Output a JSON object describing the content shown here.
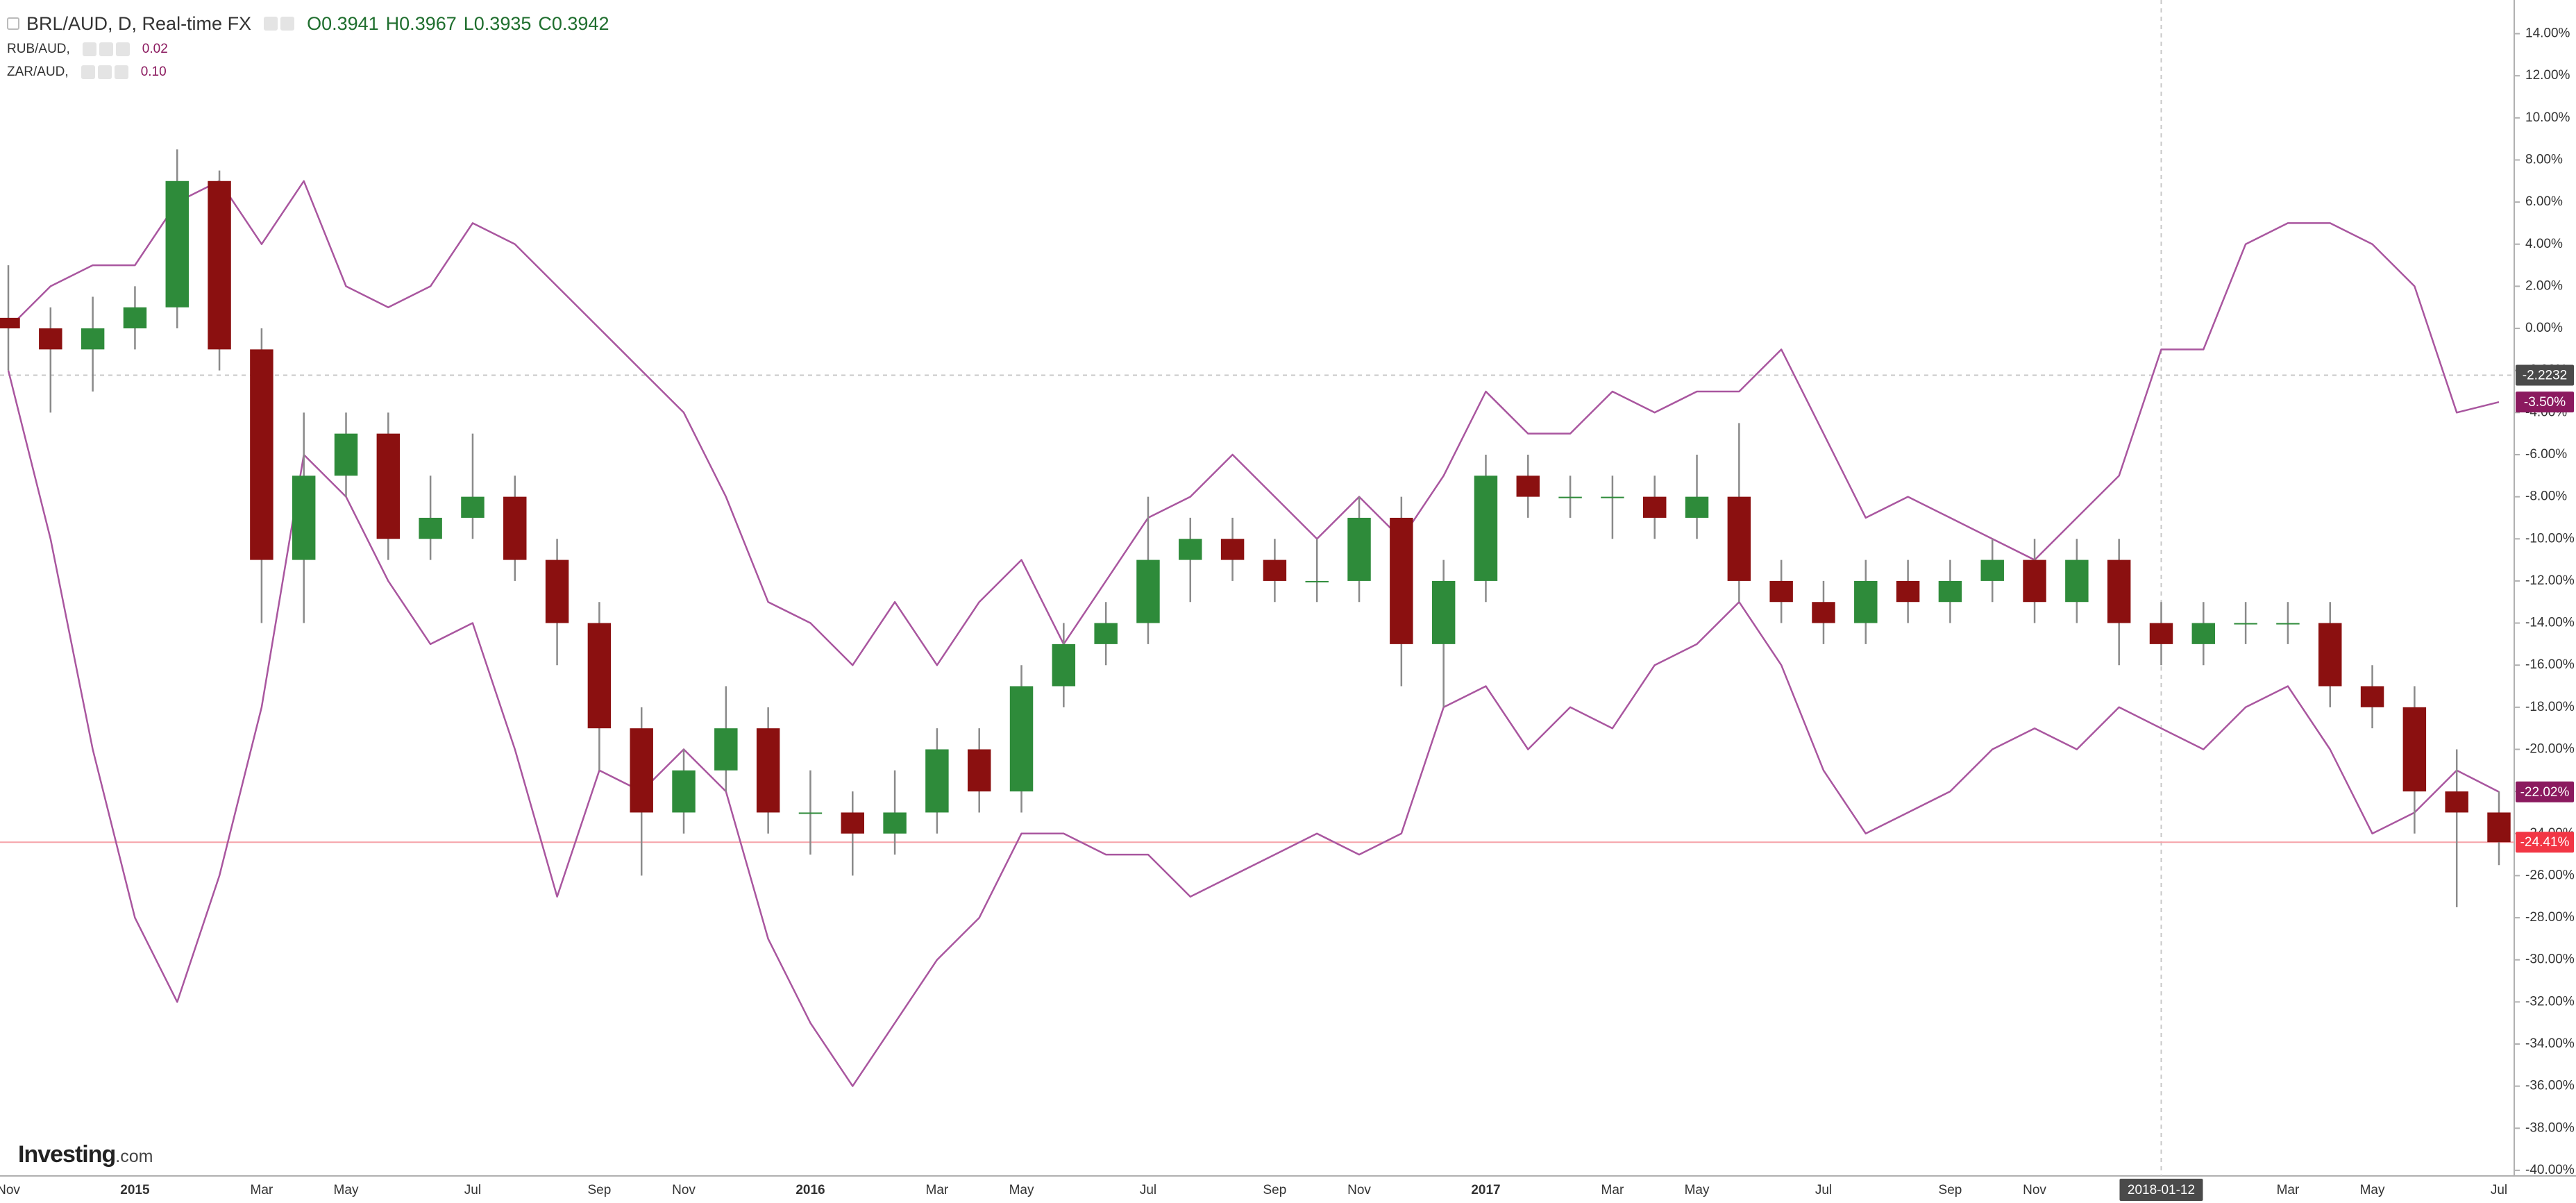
{
  "chart_data": {
    "type": "candlestick",
    "title": "BRL/AUD, D, Real-time FX",
    "ohlc": [
      "O0.3941",
      "H0.3967",
      "L0.3935",
      "C0.3942"
    ],
    "watermark": [
      "Investing",
      ".com"
    ],
    "categories": [
      "Nov",
      null,
      null,
      "2015",
      null,
      null,
      "Mar",
      null,
      "May",
      null,
      null,
      "Jul",
      null,
      null,
      "Sep",
      null,
      "Nov",
      null,
      null,
      "2016",
      null,
      null,
      "Mar",
      null,
      "May",
      null,
      null,
      "Jul",
      null,
      null,
      "Sep",
      null,
      "Nov",
      null,
      null,
      "2017",
      null,
      null,
      "Mar",
      null,
      "May",
      null,
      null,
      "Jul",
      null,
      null,
      "Sep",
      null,
      "Nov",
      null,
      null,
      "2018-01-12",
      null,
      null,
      "Mar",
      null,
      "May",
      null,
      null,
      "Jul"
    ],
    "candles": {
      "up_color": "#2e8b3a",
      "down_color": "#8b1010",
      "wick_color": "#8a8a8a",
      "open": [
        0.5,
        0,
        -1,
        0,
        1,
        7,
        -1,
        -11,
        -7,
        -5,
        -10,
        -9,
        -8,
        -11,
        -14,
        -19,
        -23,
        -21,
        -19,
        -23,
        -23,
        -24,
        -23,
        -20,
        -22,
        -17,
        -15,
        -14,
        -11,
        -10,
        -11,
        -12,
        -12,
        -9,
        -15,
        -12,
        -7,
        -8,
        -8,
        -8,
        -9,
        -8,
        -12,
        -13,
        -14,
        -12,
        -13,
        -12,
        -11,
        -13,
        -11,
        -14,
        -15,
        -14,
        -14,
        -14,
        -17,
        -18,
        -22,
        -23
      ],
      "high": [
        3,
        1,
        1.5,
        2,
        8.5,
        7.5,
        0,
        -4,
        -4,
        -4,
        -7,
        -5,
        -7,
        -10,
        -13,
        -18,
        -20,
        -17,
        -18,
        -21,
        -22,
        -21,
        -19,
        -19,
        -16,
        -14,
        -13,
        -8,
        -9,
        -9,
        -10,
        -10,
        -8,
        -8,
        -11,
        -6,
        -6,
        -7,
        -7,
        -7,
        -6,
        -4.5,
        -11,
        -12,
        -11,
        -11,
        -11,
        -10,
        -10,
        -10,
        -10,
        -13,
        -13,
        -13,
        -13,
        -13,
        -16,
        -17,
        -20,
        -22
      ],
      "low": [
        -2,
        -4,
        -3,
        -1,
        0,
        -2,
        -14,
        -14,
        -8,
        -11,
        -11,
        -10,
        -12,
        -16,
        -21,
        -26,
        -24,
        -22,
        -24,
        -25,
        -26,
        -25,
        -24,
        -23,
        -23,
        -18,
        -16,
        -15,
        -13,
        -12,
        -13,
        -13,
        -13,
        -17,
        -18,
        -13,
        -9,
        -9,
        -10,
        -10,
        -10,
        -13,
        -14,
        -15,
        -15,
        -14,
        -14,
        -13,
        -14,
        -14,
        -16,
        -16,
        -16,
        -15,
        -15,
        -18,
        -19,
        -24,
        -27.5,
        -25.5
      ],
      "close": [
        0,
        -1,
        0,
        1,
        7,
        -1,
        -11,
        -7,
        -5,
        -10,
        -9,
        -8,
        -11,
        -14,
        -19,
        -23,
        -21,
        -19,
        -23,
        -23,
        -24,
        -23,
        -20,
        -22,
        -17,
        -15,
        -14,
        -11,
        -10,
        -11,
        -12,
        -12,
        -9,
        -15,
        -12,
        -7,
        -8,
        -8,
        -8,
        -9,
        -8,
        -12,
        -13,
        -14,
        -12,
        -13,
        -12,
        -11,
        -13,
        -11,
        -14,
        -15,
        -14,
        -14,
        -14,
        -17,
        -18,
        -22,
        -23,
        -24.41
      ]
    },
    "series": [
      {
        "name": "RUB/AUD,",
        "legend_value": "0.02",
        "color": "#a9569f",
        "values": [
          -2,
          -10,
          -20,
          -28,
          -32,
          -26,
          -18,
          -6,
          -8,
          -12,
          -15,
          -14,
          -20,
          -27,
          -21,
          -22,
          -20,
          -22,
          -29,
          -33,
          -36,
          -33,
          -30,
          -28,
          -24,
          -24,
          -25,
          -25,
          -27,
          -26,
          -25,
          -24,
          -25,
          -24,
          -18,
          -17,
          -20,
          -18,
          -19,
          -16,
          -15,
          -13,
          -16,
          -21,
          -24,
          -23,
          -22,
          -20,
          -19,
          -20,
          -18,
          -19,
          -20,
          -18,
          -17,
          -20,
          -24,
          -23,
          -21,
          -22.02
        ]
      },
      {
        "name": "ZAR/AUD,",
        "legend_value": "0.10",
        "color": "#a9569f",
        "values": [
          0,
          2,
          3,
          3,
          6,
          7,
          4,
          7,
          2,
          1,
          2,
          5,
          4,
          2,
          0,
          -2,
          -4,
          -8,
          -13,
          -14,
          -16,
          -13,
          -16,
          -13,
          -11,
          -15,
          -12,
          -9,
          -8,
          -6,
          -8,
          -10,
          -8,
          -10,
          -7,
          -3,
          -5,
          -5,
          -3,
          -4,
          -3,
          -3,
          -1,
          -5,
          -9,
          -8,
          -9,
          -10,
          -11,
          -9,
          -7,
          -1,
          -1,
          4,
          5,
          5,
          4,
          2,
          -4,
          -3.5
        ]
      }
    ],
    "ylim": [
      -40.2,
      15.6
    ],
    "yticks": [
      {
        "value": 14,
        "label": "14.00%"
      },
      {
        "value": 12,
        "label": "12.00%"
      },
      {
        "value": 10,
        "label": "10.00%"
      },
      {
        "value": 8,
        "label": "8.00%"
      },
      {
        "value": 6,
        "label": "6.00%"
      },
      {
        "value": 4,
        "label": "4.00%"
      },
      {
        "value": 2,
        "label": "2.00%"
      },
      {
        "value": 0,
        "label": "0.00%"
      },
      {
        "value": -2,
        "label": "-2.00%"
      },
      {
        "value": -4,
        "label": "-4.00%"
      },
      {
        "value": -6,
        "label": "-6.00%"
      },
      {
        "value": -8,
        "label": "-8.00%"
      },
      {
        "value": -10,
        "label": "-10.00%"
      },
      {
        "value": -12,
        "label": "-12.00%"
      },
      {
        "value": -14,
        "label": "-14.00%"
      },
      {
        "value": -16,
        "label": "-16.00%"
      },
      {
        "value": -18,
        "label": "-18.00%"
      },
      {
        "value": -20,
        "label": "-20.00%"
      },
      {
        "value": -22,
        "label": "-22.00%"
      },
      {
        "value": -24,
        "label": "-24.00%"
      },
      {
        "value": -26,
        "label": "-26.00%"
      },
      {
        "value": -28,
        "label": "-28.00%"
      },
      {
        "value": -30,
        "label": "-30.00%"
      },
      {
        "value": -32,
        "label": "-32.00%"
      },
      {
        "value": -34,
        "label": "-34.00%"
      },
      {
        "value": -36,
        "label": "-36.00%"
      },
      {
        "value": -38,
        "label": "-38.00%"
      },
      {
        "value": -40,
        "label": "-40.00%"
      }
    ],
    "price_labels": [
      {
        "value": -3.5,
        "label": "-3.50%",
        "color": "#8b1a5f"
      },
      {
        "value": -22.02,
        "label": "-22.02%",
        "color": "#8b1a5f"
      },
      {
        "value": -24.41,
        "label": "-24.41%",
        "color": "#f23645",
        "line": "#f5a3a9"
      }
    ],
    "crosshair": {
      "x": "2018-01-12",
      "y": -2.2232,
      "color": "#4a4a4a"
    },
    "grid": false
  }
}
